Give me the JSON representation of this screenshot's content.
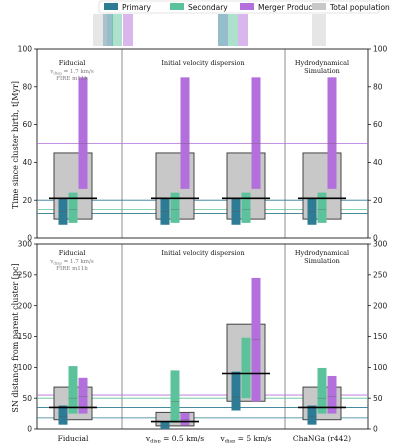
{
  "colors": {
    "primary": "#2e7b95",
    "secondary": "#5cc29b",
    "merger": "#b36fdb",
    "total": "#c8c8c8",
    "total_edge": "#333333"
  },
  "legend": {
    "entries": [
      {
        "key": "primary",
        "label": "Primary"
      },
      {
        "key": "secondary",
        "label": "Secondary"
      },
      {
        "key": "merger",
        "label": "Merger Product"
      },
      {
        "key": "total",
        "label": "Total population"
      }
    ]
  },
  "panel_titles": [
    {
      "title": "Fiducial",
      "note1": "v",
      "note1_sub": "disp",
      "note1_rest": " = 1.7 km/s",
      "note2": "FIRE m11h"
    },
    {
      "title": "Initial velocity dispersion",
      "note1": "",
      "note1_sub": "",
      "note1_rest": "",
      "note2": ""
    },
    {
      "title": "Hydrodynamical",
      "title2": "Simulation",
      "note1": "",
      "note1_sub": "",
      "note1_rest": "",
      "note2": ""
    }
  ],
  "bottom_titles": [
    {
      "title": "Fiducial",
      "note1": "v",
      "note1_sub": "disp",
      "note1_rest": " = 1.7 km/s",
      "note2": "FIRE m11h"
    },
    {
      "title": "Initial velocity dispersion"
    },
    {
      "title": "Hydrodynamical",
      "title2": "Simulation"
    }
  ],
  "x_categories": [
    {
      "label": "Fiducial",
      "pre": "",
      "sub": "",
      "post": ""
    },
    {
      "label": "",
      "pre": "v",
      "sub": "disp",
      "post": " = 0.5 km/s"
    },
    {
      "label": "",
      "pre": "v",
      "sub": "disp",
      "post": " = 5 km/s"
    },
    {
      "label": "ChaNGa (r442)",
      "pre": "",
      "sub": "",
      "post": ""
    }
  ],
  "chart_data": [
    {
      "type": "bar",
      "ylabel": "Time since cluster birth, t[Myr]",
      "ylim": [
        0,
        100
      ],
      "yticks": [
        0,
        20,
        40,
        60,
        80,
        100
      ],
      "hlines": [
        {
          "color_key": "merger",
          "y": 50
        },
        {
          "color_key": "primary",
          "y": 20
        },
        {
          "color_key": "secondary",
          "y": 15
        },
        {
          "color_key": "primary",
          "y": 13
        }
      ],
      "groups": [
        {
          "category": "Fiducial",
          "total": {
            "low": 10,
            "high": 45,
            "median": 21
          },
          "primary": {
            "low": 7,
            "high": 21,
            "median": 14
          },
          "secondary": {
            "low": 8,
            "high": 24,
            "median": 15
          },
          "merger": {
            "low": 26,
            "high": 85,
            "median": 50
          }
        },
        {
          "category": "vdisp = 0.5 km/s",
          "total": {
            "low": 10,
            "high": 45,
            "median": 21
          },
          "primary": {
            "low": 7,
            "high": 21,
            "median": 14
          },
          "secondary": {
            "low": 8,
            "high": 24,
            "median": 15
          },
          "merger": {
            "low": 26,
            "high": 85,
            "median": 50
          }
        },
        {
          "category": "vdisp = 5 km/s",
          "total": {
            "low": 10,
            "high": 45,
            "median": 21
          },
          "primary": {
            "low": 7,
            "high": 21,
            "median": 14
          },
          "secondary": {
            "low": 8,
            "high": 24,
            "median": 15
          },
          "merger": {
            "low": 26,
            "high": 85,
            "median": 50
          }
        },
        {
          "category": "ChaNGa (r442)",
          "total": {
            "low": 10,
            "high": 45,
            "median": 21
          },
          "primary": {
            "low": 7,
            "high": 21,
            "median": 14
          },
          "secondary": {
            "low": 8,
            "high": 24,
            "median": 15
          },
          "merger": {
            "low": 26,
            "high": 85,
            "median": 50
          }
        }
      ]
    },
    {
      "type": "bar",
      "ylabel": "SN distance from parent cluster [pc]",
      "ylim": [
        0,
        300
      ],
      "yticks": [
        0,
        50,
        100,
        150,
        200,
        250,
        300
      ],
      "hlines": [
        {
          "color_key": "merger",
          "y": 55
        },
        {
          "color_key": "secondary",
          "y": 50
        },
        {
          "color_key": "primary",
          "y": 35
        },
        {
          "color_key": "primary",
          "y": 18
        }
      ],
      "groups": [
        {
          "category": "Fiducial",
          "total": {
            "low": 15,
            "high": 68,
            "median": 35
          },
          "primary": {
            "low": 7,
            "high": 38,
            "median": 20
          },
          "secondary": {
            "low": 25,
            "high": 102,
            "median": 50
          },
          "merger": {
            "low": 25,
            "high": 83,
            "median": 53
          }
        },
        {
          "category": "vdisp = 0.5 km/s",
          "total": {
            "low": 5,
            "high": 27,
            "median": 12
          },
          "primary": {
            "low": 0,
            "high": 12,
            "median": 5
          },
          "secondary": {
            "low": 10,
            "high": 95,
            "median": 45
          },
          "merger": {
            "low": 6,
            "high": 26,
            "median": 15
          }
        },
        {
          "category": "vdisp = 5 km/s",
          "total": {
            "low": 45,
            "high": 170,
            "median": 90
          },
          "primary": {
            "low": 30,
            "high": 93,
            "median": 52
          },
          "secondary": {
            "low": 50,
            "high": 148,
            "median": 90
          },
          "merger": {
            "low": 45,
            "high": 245,
            "median": 145
          }
        },
        {
          "category": "ChaNGa (r442)",
          "total": {
            "low": 15,
            "high": 68,
            "median": 35
          },
          "primary": {
            "low": 7,
            "high": 38,
            "median": 20
          },
          "secondary": {
            "low": 25,
            "high": 99,
            "median": 50
          },
          "merger": {
            "low": 25,
            "high": 86,
            "median": 53
          }
        }
      ]
    }
  ]
}
